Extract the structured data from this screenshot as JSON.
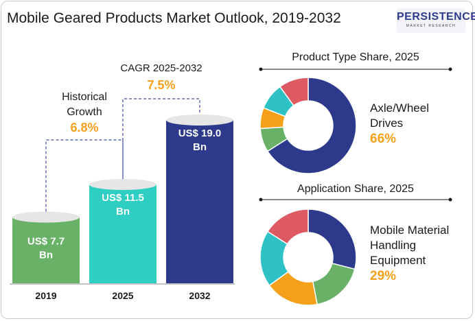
{
  "page": {
    "title": "Mobile Geared Products Market Outlook, 2019-2032"
  },
  "logo": {
    "name": "PERSISTENCE",
    "subtitle": "MARKET RESEARCH"
  },
  "colors": {
    "green": "#6ab168",
    "teal": "#2ecfc2",
    "navy": "#2d3a8c",
    "orange": "#f5a01a",
    "teal_slice": "#2ec2c6",
    "red": "#dd5a63",
    "dark_text": "#1a1a1a"
  },
  "chart_data": [
    {
      "type": "bar",
      "categories": [
        "2019",
        "2025",
        "2032"
      ],
      "values": [
        7.7,
        11.5,
        19.0
      ],
      "value_labels": [
        [
          "US$ 7.7",
          "Bn"
        ],
        [
          "US$ 11.5",
          "Bn"
        ],
        [
          "US$ 19.0",
          "Bn"
        ]
      ],
      "colors": [
        "#6ab168",
        "#2ecfc2",
        "#2d3a8c"
      ],
      "annotations": [
        {
          "label": [
            "Historical",
            "Growth"
          ],
          "value": "6.8%",
          "from": "2019",
          "to": "2025"
        },
        {
          "label": [
            "CAGR 2025-2032"
          ],
          "value": "7.5%",
          "from": "2025",
          "to": "2032"
        }
      ]
    },
    {
      "type": "pie",
      "title": "Product Type Share, 2025",
      "highlight_label": [
        "Axle/Wheel",
        "Drives"
      ],
      "highlight_value": "66%",
      "slices": [
        {
          "value": 66,
          "color": "#2d3a8c"
        },
        {
          "value": 8,
          "color": "#6ab168"
        },
        {
          "value": 7,
          "color": "#f5a01a"
        },
        {
          "value": 9,
          "color": "#2ec2c6"
        },
        {
          "value": 10,
          "color": "#dd5a63"
        }
      ]
    },
    {
      "type": "pie",
      "title": "Application Share, 2025",
      "highlight_label": [
        "Mobile Material",
        "Handling",
        "Equipment"
      ],
      "highlight_value": "29%",
      "slices": [
        {
          "value": 29,
          "color": "#2d3a8c"
        },
        {
          "value": 18,
          "color": "#6ab168"
        },
        {
          "value": 18,
          "color": "#f5a01a"
        },
        {
          "value": 19,
          "color": "#2ec2c6"
        },
        {
          "value": 16,
          "color": "#dd5a63"
        }
      ]
    }
  ]
}
